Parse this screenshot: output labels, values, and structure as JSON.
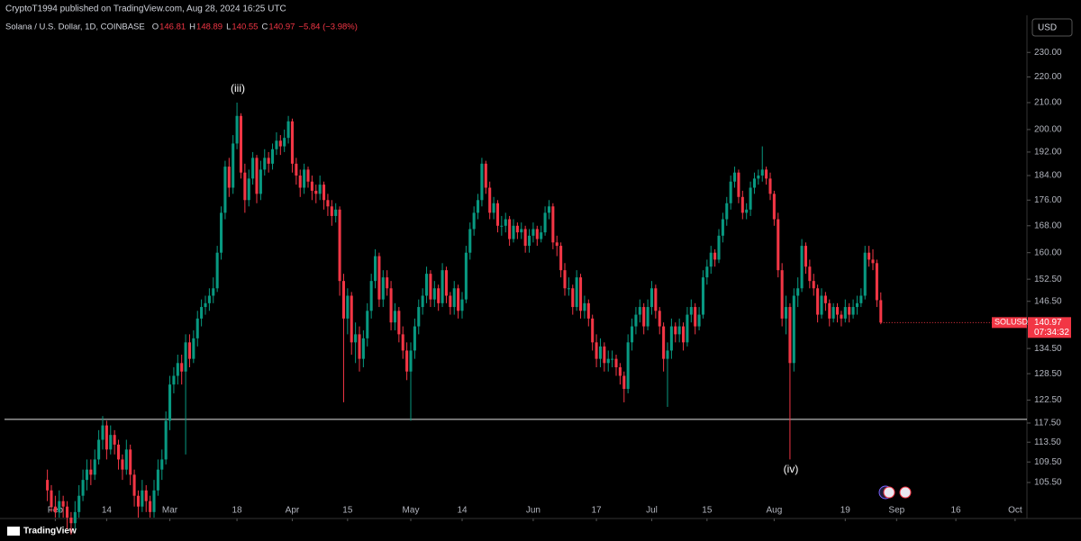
{
  "header": "CryptoT1994 published on TradingView.com, Aug 28, 2024 16:25 UTC",
  "footer": "TradingView",
  "currency_button": "USD",
  "chart_data": {
    "type": "candlestick",
    "symbol": "Solana / U.S. Dollar, 1D, COINBASE",
    "ohlc_labels": [
      "O",
      "H",
      "L",
      "C"
    ],
    "change": "−5.84 (−3.98%)",
    "price_tag": "SOLUSD",
    "countdown": "07:34:32",
    "annotations": [
      "(iii)",
      "(iv)"
    ],
    "up_color": "#089981",
    "down_color": "#f23645",
    "log_scale": true,
    "hline": 118.3,
    "ylim": [
      99,
      246
    ],
    "yticks": [
      {
        "value": 230,
        "label": "230.00"
      },
      {
        "value": 220,
        "label": "220.00"
      },
      {
        "value": 210,
        "label": "210.00"
      },
      {
        "value": 200,
        "label": "200.00"
      },
      {
        "value": 192,
        "label": "192.00"
      },
      {
        "value": 184,
        "label": "184.00"
      },
      {
        "value": 176,
        "label": "176.00"
      },
      {
        "value": 168,
        "label": "168.00"
      },
      {
        "value": 160,
        "label": "160.00"
      },
      {
        "value": 152.5,
        "label": "152.50"
      },
      {
        "value": 146.5,
        "label": "146.50"
      },
      {
        "value": 140.5,
        "label": "140.50"
      },
      {
        "value": 134.5,
        "label": "134.50"
      },
      {
        "value": 128.5,
        "label": "128.50"
      },
      {
        "value": 122.5,
        "label": "122.50"
      },
      {
        "value": 117.5,
        "label": "117.50"
      },
      {
        "value": 113.5,
        "label": "113.50"
      },
      {
        "value": 109.5,
        "label": "109.50"
      },
      {
        "value": 105.5,
        "label": "105.50"
      }
    ],
    "xlim": [
      -12,
      248
    ],
    "xticks": [
      {
        "value": 2,
        "label": "Feb"
      },
      {
        "value": 15,
        "label": "14"
      },
      {
        "value": 31,
        "label": "Mar"
      },
      {
        "value": 48,
        "label": "18"
      },
      {
        "value": 62,
        "label": "Apr"
      },
      {
        "value": 76,
        "label": "15"
      },
      {
        "value": 92,
        "label": "May"
      },
      {
        "value": 105,
        "label": "14"
      },
      {
        "value": 123,
        "label": "Jun"
      },
      {
        "value": 139,
        "label": "17"
      },
      {
        "value": 153,
        "label": "Jul"
      },
      {
        "value": 167,
        "label": "15"
      },
      {
        "value": 184,
        "label": "Aug"
      },
      {
        "value": 202,
        "label": "19"
      },
      {
        "value": 215,
        "label": "Sep"
      },
      {
        "value": 230,
        "label": "16"
      },
      {
        "value": 245,
        "label": "Oct"
      }
    ],
    "candles": [
      [
        106,
        108,
        102,
        104
      ],
      [
        104,
        105,
        100,
        101
      ],
      [
        101,
        103,
        99,
        100
      ],
      [
        100,
        104,
        99,
        102
      ],
      [
        102,
        103,
        99,
        101
      ],
      [
        101,
        102,
        97,
        99
      ],
      [
        99,
        100,
        96,
        98
      ],
      [
        98,
        102,
        97,
        100
      ],
      [
        100,
        105,
        99,
        103
      ],
      [
        103,
        108,
        102,
        106
      ],
      [
        106,
        110,
        104,
        108
      ],
      [
        108,
        110,
        105,
        107
      ],
      [
        107,
        112,
        106,
        110
      ],
      [
        110,
        116,
        109,
        114
      ],
      [
        114,
        119,
        112,
        117
      ],
      [
        117,
        118,
        110,
        112
      ],
      [
        112,
        117,
        111,
        115
      ],
      [
        115,
        116,
        111,
        113
      ],
      [
        113,
        114,
        108,
        110
      ],
      [
        110,
        111,
        106,
        108
      ],
      [
        108,
        114,
        107,
        112
      ],
      [
        112,
        113,
        105,
        107
      ],
      [
        107,
        108,
        101,
        103
      ],
      [
        103,
        104,
        99,
        101
      ],
      [
        101,
        106,
        100,
        104
      ],
      [
        104,
        105,
        100,
        102
      ],
      [
        102,
        103,
        99,
        100
      ],
      [
        100,
        106,
        99,
        104
      ],
      [
        104,
        110,
        103,
        108
      ],
      [
        108,
        112,
        106,
        110
      ],
      [
        110,
        120,
        109,
        118
      ],
      [
        118,
        128,
        116,
        126
      ],
      [
        126,
        130,
        124,
        128
      ],
      [
        128,
        133,
        126,
        131
      ],
      [
        131,
        133,
        126,
        129
      ],
      [
        129,
        138,
        111,
        136
      ],
      [
        136,
        138,
        130,
        132
      ],
      [
        132,
        139,
        131,
        137
      ],
      [
        137,
        144,
        135,
        142
      ],
      [
        142,
        147,
        140,
        145
      ],
      [
        145,
        148,
        143,
        146
      ],
      [
        146,
        150,
        144,
        148
      ],
      [
        148,
        153,
        146,
        150
      ],
      [
        150,
        162,
        149,
        160
      ],
      [
        160,
        174,
        158,
        172
      ],
      [
        172,
        189,
        170,
        187
      ],
      [
        187,
        190,
        177,
        180
      ],
      [
        180,
        198,
        178,
        195
      ],
      [
        195,
        210,
        193,
        205
      ],
      [
        205,
        206,
        183,
        185
      ],
      [
        185,
        188,
        172,
        176
      ],
      [
        176,
        186,
        174,
        183
      ],
      [
        183,
        192,
        181,
        190
      ],
      [
        190,
        191,
        175,
        178
      ],
      [
        178,
        189,
        176,
        186
      ],
      [
        186,
        193,
        184,
        190
      ],
      [
        190,
        192,
        185,
        188
      ],
      [
        188,
        195,
        186,
        193
      ],
      [
        193,
        199,
        191,
        196
      ],
      [
        196,
        198,
        191,
        194
      ],
      [
        194,
        200,
        192,
        197
      ],
      [
        197,
        205,
        195,
        203
      ],
      [
        203,
        204,
        185,
        188
      ],
      [
        188,
        190,
        181,
        184
      ],
      [
        184,
        186,
        177,
        180
      ],
      [
        180,
        188,
        178,
        186
      ],
      [
        186,
        187,
        180,
        182
      ],
      [
        182,
        184,
        176,
        179
      ],
      [
        179,
        181,
        175,
        178
      ],
      [
        178,
        184,
        176,
        181
      ],
      [
        181,
        182,
        173,
        176
      ],
      [
        176,
        178,
        171,
        174
      ],
      [
        174,
        176,
        168,
        171
      ],
      [
        171,
        175,
        169,
        173
      ],
      [
        173,
        174,
        148,
        152
      ],
      [
        152,
        154,
        122,
        142
      ],
      [
        142,
        150,
        138,
        148
      ],
      [
        148,
        149,
        133,
        136
      ],
      [
        136,
        141,
        131,
        138
      ],
      [
        138,
        140,
        129,
        132
      ],
      [
        132,
        139,
        130,
        137
      ],
      [
        137,
        146,
        135,
        144
      ],
      [
        144,
        154,
        142,
        152
      ],
      [
        152,
        161,
        150,
        159
      ],
      [
        159,
        160,
        145,
        147
      ],
      [
        147,
        155,
        145,
        153
      ],
      [
        153,
        155,
        148,
        150
      ],
      [
        150,
        152,
        139,
        141
      ],
      [
        141,
        146,
        139,
        144
      ],
      [
        144,
        145,
        136,
        138
      ],
      [
        138,
        140,
        132,
        134
      ],
      [
        134,
        136,
        127,
        129
      ],
      [
        129,
        136,
        118,
        134
      ],
      [
        134,
        142,
        132,
        140
      ],
      [
        140,
        147,
        138,
        145
      ],
      [
        145,
        150,
        143,
        148
      ],
      [
        148,
        156,
        146,
        154
      ],
      [
        154,
        155,
        145,
        147
      ],
      [
        147,
        152,
        145,
        150
      ],
      [
        150,
        151,
        144,
        146
      ],
      [
        146,
        157,
        145,
        155
      ],
      [
        155,
        156,
        146,
        148
      ],
      [
        148,
        149,
        143,
        145
      ],
      [
        145,
        152,
        143,
        150
      ],
      [
        150,
        151,
        142,
        144
      ],
      [
        144,
        149,
        142,
        147
      ],
      [
        147,
        162,
        146,
        160
      ],
      [
        160,
        169,
        158,
        167
      ],
      [
        167,
        174,
        165,
        172
      ],
      [
        172,
        178,
        170,
        176
      ],
      [
        176,
        190,
        174,
        188
      ],
      [
        188,
        189,
        178,
        180
      ],
      [
        180,
        182,
        170,
        172
      ],
      [
        172,
        177,
        170,
        175
      ],
      [
        175,
        176,
        166,
        168
      ],
      [
        168,
        171,
        165,
        168
      ],
      [
        168,
        172,
        166,
        170
      ],
      [
        170,
        171,
        162,
        164
      ],
      [
        164,
        170,
        163,
        168
      ],
      [
        168,
        169,
        164,
        166
      ],
      [
        166,
        169,
        164,
        167
      ],
      [
        167,
        168,
        160,
        162
      ],
      [
        162,
        167,
        160,
        165
      ],
      [
        165,
        169,
        163,
        167
      ],
      [
        167,
        168,
        162,
        164
      ],
      [
        164,
        168,
        163,
        166
      ],
      [
        166,
        174,
        165,
        172
      ],
      [
        172,
        176,
        170,
        174
      ],
      [
        174,
        175,
        161,
        163
      ],
      [
        163,
        165,
        159,
        162
      ],
      [
        162,
        163,
        153,
        155
      ],
      [
        155,
        157,
        148,
        150
      ],
      [
        150,
        153,
        148,
        150
      ],
      [
        150,
        151,
        143,
        145
      ],
      [
        145,
        155,
        144,
        153
      ],
      [
        153,
        154,
        142,
        144
      ],
      [
        144,
        148,
        142,
        146
      ],
      [
        146,
        147,
        140,
        142
      ],
      [
        142,
        143,
        134,
        136
      ],
      [
        136,
        138,
        130,
        132
      ],
      [
        132,
        137,
        130,
        135
      ],
      [
        135,
        136,
        129,
        131
      ],
      [
        131,
        134,
        129,
        132
      ],
      [
        132,
        134,
        130,
        132
      ],
      [
        132,
        133,
        128,
        130
      ],
      [
        130,
        131,
        126,
        128
      ],
      [
        128,
        129,
        122,
        125
      ],
      [
        125,
        138,
        124,
        136
      ],
      [
        136,
        142,
        134,
        140
      ],
      [
        140,
        145,
        138,
        143
      ],
      [
        143,
        147,
        141,
        145
      ],
      [
        145,
        146,
        138,
        140
      ],
      [
        140,
        147,
        139,
        145
      ],
      [
        145,
        152,
        143,
        150
      ],
      [
        150,
        151,
        142,
        144
      ],
      [
        144,
        145,
        138,
        140
      ],
      [
        140,
        141,
        129,
        132
      ],
      [
        132,
        136,
        121,
        134
      ],
      [
        134,
        142,
        132,
        140
      ],
      [
        140,
        141,
        136,
        138
      ],
      [
        138,
        142,
        136,
        140
      ],
      [
        140,
        141,
        134,
        136
      ],
      [
        136,
        145,
        135,
        143
      ],
      [
        143,
        147,
        141,
        145
      ],
      [
        145,
        146,
        138,
        140
      ],
      [
        140,
        145,
        139,
        143
      ],
      [
        143,
        155,
        142,
        153
      ],
      [
        153,
        158,
        151,
        156
      ],
      [
        156,
        162,
        154,
        160
      ],
      [
        160,
        161,
        156,
        158
      ],
      [
        158,
        167,
        157,
        165
      ],
      [
        165,
        172,
        163,
        170
      ],
      [
        170,
        177,
        168,
        175
      ],
      [
        175,
        184,
        173,
        182
      ],
      [
        182,
        187,
        180,
        185
      ],
      [
        185,
        186,
        175,
        177
      ],
      [
        177,
        179,
        170,
        172
      ],
      [
        172,
        175,
        170,
        173
      ],
      [
        173,
        182,
        171,
        180
      ],
      [
        180,
        185,
        178,
        183
      ],
      [
        183,
        186,
        181,
        184
      ],
      [
        184,
        194,
        182,
        186
      ],
      [
        186,
        187,
        181,
        183
      ],
      [
        183,
        185,
        176,
        178
      ],
      [
        178,
        179,
        168,
        170
      ],
      [
        170,
        172,
        153,
        155
      ],
      [
        155,
        157,
        140,
        142
      ],
      [
        142,
        148,
        138,
        145
      ],
      [
        145,
        146,
        110,
        131
      ],
      [
        131,
        150,
        129,
        148
      ],
      [
        148,
        153,
        145,
        150
      ],
      [
        150,
        164,
        149,
        162
      ],
      [
        162,
        163,
        154,
        156
      ],
      [
        156,
        158,
        150,
        152
      ],
      [
        152,
        154,
        148,
        150
      ],
      [
        150,
        151,
        141,
        143
      ],
      [
        143,
        150,
        142,
        148
      ],
      [
        148,
        149,
        144,
        146
      ],
      [
        146,
        147,
        140,
        142
      ],
      [
        142,
        146,
        141,
        145
      ],
      [
        145,
        146,
        141,
        143
      ],
      [
        143,
        144,
        140,
        142
      ],
      [
        142,
        147,
        141,
        145
      ],
      [
        145,
        146,
        141,
        143
      ],
      [
        143,
        147,
        142,
        145
      ],
      [
        145,
        148,
        143,
        146
      ],
      [
        146,
        150,
        145,
        148
      ],
      [
        148,
        162,
        147,
        160
      ],
      [
        160,
        162,
        156,
        158
      ],
      [
        158,
        161,
        155,
        157
      ],
      [
        157,
        158,
        145,
        146.81
      ],
      [
        146.81,
        148.89,
        140.55,
        140.97
      ]
    ]
  }
}
